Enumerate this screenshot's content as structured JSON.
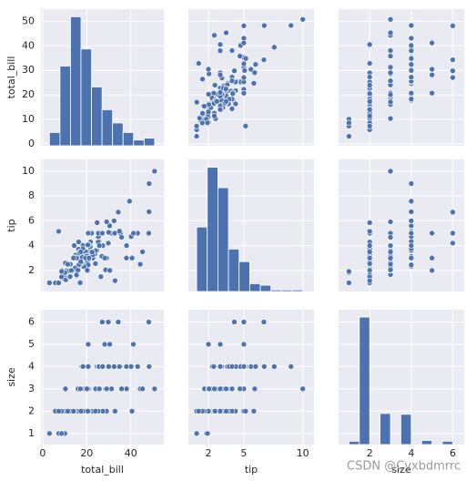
{
  "chart_data": {
    "type": "pairplot",
    "color": "#4c72b0",
    "grid": true,
    "variables": [
      {
        "name": "total_bill",
        "lim": [
          -0.8,
          55
        ],
        "ticks": [
          0,
          10,
          20,
          30,
          40,
          50
        ],
        "xticks": [
          0,
          20,
          40
        ],
        "values": [
          16.99,
          10.34,
          21.01,
          23.68,
          24.59,
          25.29,
          8.77,
          26.88,
          15.04,
          14.78,
          10.27,
          35.26,
          15.42,
          18.43,
          14.83,
          21.58,
          10.33,
          16.29,
          16.97,
          20.65,
          17.92,
          20.29,
          15.77,
          39.42,
          19.82,
          17.81,
          13.37,
          12.69,
          21.7,
          19.65,
          9.55,
          18.35,
          15.06,
          20.69,
          17.78,
          24.06,
          16.31,
          16.93,
          18.69,
          31.27,
          16.04,
          17.46,
          13.94,
          9.68,
          30.4,
          18.29,
          22.23,
          32.4,
          28.55,
          18.04,
          12.54,
          10.29,
          34.81,
          9.94,
          25.56,
          19.49,
          38.01,
          26.41,
          11.24,
          48.27,
          20.29,
          13.81,
          11.02,
          18.29,
          17.59,
          20.08,
          16.45,
          3.07,
          20.23,
          15.01,
          12.02,
          17.07,
          26.86,
          25.28,
          14.73,
          10.51,
          17.92,
          27.2,
          22.76,
          17.29,
          19.44,
          16.66,
          10.07,
          32.68,
          15.98,
          34.83,
          13.03,
          18.28,
          24.71,
          21.16,
          28.97,
          22.49,
          5.75,
          16.32,
          22.75,
          40.17,
          27.28,
          12.03,
          21.01,
          12.46,
          11.35,
          15.38,
          44.3,
          22.42,
          20.92,
          15.36,
          20.49,
          25.21,
          18.24,
          14.31,
          14,
          7.25,
          38.07,
          23.95,
          25.71,
          17.31,
          29.93,
          8.52,
          50.81,
          48.33,
          48.17,
          34.3,
          27.05,
          29.8,
          40.55,
          7.25,
          8.58,
          43.11,
          45.35,
          41.19,
          20.69,
          28.15,
          30.46,
          32.83,
          35.83,
          29.03
        ]
      },
      {
        "name": "tip",
        "lim": [
          0.3,
          10.95
        ],
        "ticks": [
          2,
          4,
          6,
          8,
          10
        ],
        "xticks": [
          2,
          5,
          10
        ],
        "values": [
          1.01,
          1.66,
          3.5,
          3.31,
          3.61,
          4.71,
          2,
          3.12,
          1.96,
          3.23,
          1.71,
          5,
          1.57,
          3,
          3.02,
          3.92,
          1.67,
          3.71,
          3.5,
          3.35,
          4.08,
          2.75,
          2.23,
          7.58,
          3.18,
          2.34,
          2,
          2,
          4.3,
          3,
          1.45,
          2.5,
          3,
          2.45,
          3.27,
          3.6,
          2,
          3.07,
          2.31,
          5,
          2.24,
          2.54,
          3.06,
          1.32,
          5.6,
          3,
          5,
          6,
          2.05,
          3,
          2.5,
          2.6,
          5.2,
          1.56,
          4.34,
          3.51,
          3,
          1.5,
          1.76,
          6.73,
          3.21,
          2,
          1.98,
          3.76,
          2.64,
          3.15,
          2.47,
          1,
          2.01,
          2.09,
          1.97,
          3,
          3.14,
          5,
          2.2,
          1.25,
          3.08,
          4,
          3,
          2.71,
          3,
          3.4,
          1.83,
          5,
          2.03,
          5.17,
          2,
          4,
          5.85,
          3,
          3,
          3.5,
          1,
          4.3,
          3.25,
          4.73,
          4,
          1.5,
          3,
          1.5,
          2.5,
          3,
          2.5,
          3.48,
          4.08,
          1.64,
          4.06,
          4.29,
          3.76,
          4,
          3,
          1,
          4,
          2.55,
          4,
          3.5,
          5.07,
          1.48,
          10,
          9,
          5,
          6.7,
          5,
          4.2,
          3,
          5.15,
          1.92,
          5,
          3.5,
          5,
          5,
          3,
          2,
          1.17,
          4.67,
          5.92
        ]
      },
      {
        "name": "size",
        "lim": [
          0.5,
          6.55
        ],
        "ticks": [
          1,
          2,
          3,
          4,
          5,
          6
        ],
        "xticks": [
          2,
          4,
          6
        ],
        "values": [
          2,
          3,
          3,
          2,
          4,
          4,
          2,
          4,
          2,
          2,
          2,
          4,
          2,
          4,
          2,
          2,
          3,
          3,
          3,
          3,
          2,
          2,
          2,
          4,
          2,
          4,
          2,
          2,
          2,
          2,
          2,
          4,
          2,
          4,
          2,
          3,
          3,
          3,
          3,
          3,
          3,
          2,
          2,
          2,
          4,
          2,
          2,
          4,
          3,
          2,
          2,
          2,
          4,
          2,
          4,
          2,
          4,
          2,
          2,
          4,
          2,
          2,
          2,
          4,
          3,
          3,
          2,
          1,
          2,
          2,
          2,
          3,
          2,
          2,
          2,
          2,
          2,
          4,
          2,
          2,
          2,
          2,
          1,
          2,
          2,
          4,
          2,
          2,
          2,
          2,
          2,
          2,
          2,
          2,
          2,
          4,
          2,
          2,
          2,
          2,
          2,
          2,
          3,
          2,
          2,
          2,
          2,
          2,
          2,
          2,
          2,
          1,
          3,
          2,
          3,
          2,
          4,
          2,
          3,
          4,
          6,
          6,
          6,
          6,
          2,
          2,
          1,
          4,
          3,
          5,
          5,
          5,
          5,
          2,
          3,
          3
        ]
      }
    ],
    "diagonal": [
      {
        "type": "histogram",
        "bins": [
          3.07,
          7.84,
          12.62,
          17.39,
          22.17,
          26.94,
          31.71,
          36.49,
          41.26,
          46.04,
          50.81
        ],
        "counts": [
          7,
          42,
          68,
          51,
          31,
          19,
          12,
          7,
          3,
          4
        ],
        "ylim": [
          0,
          72
        ]
      },
      {
        "type": "histogram",
        "bins": [
          1,
          1.9,
          2.8,
          3.7,
          4.6,
          5.5,
          6.4,
          7.3,
          8.2,
          9.1,
          10
        ],
        "counts": [
          41,
          79,
          66,
          27,
          19,
          5,
          4,
          1,
          1,
          1
        ],
        "ylim": [
          0,
          84
        ]
      },
      {
        "type": "histogram",
        "bins": [
          1,
          1.5,
          2,
          2.5,
          3,
          3.5,
          4,
          4.5,
          5,
          5.5,
          6
        ],
        "counts": [
          4,
          156,
          0,
          38,
          0,
          37,
          0,
          5,
          0,
          4
        ],
        "ylim": [
          0,
          165
        ]
      }
    ]
  },
  "watermark": "CSDN @Cyxbdmrrc"
}
